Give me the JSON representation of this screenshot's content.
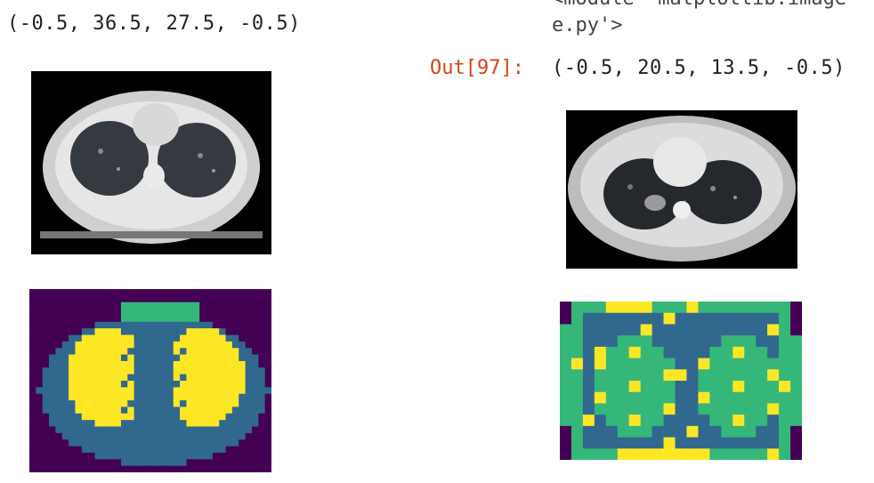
{
  "left_cell": {
    "output_tuple": "(-0.5, 36.5, 27.5, -0.5)"
  },
  "right_cell": {
    "cutoff_line": "<module 'matplotlib.image'",
    "cutoff_line2": "e.py'>",
    "out_prompt": "Out[97]:",
    "output_tuple": "(-0.5, 20.5, 13.5, -0.5)"
  },
  "colors": {
    "prompt": "#d84315",
    "viridis_dark": "#440154",
    "viridis_blue": "#31688e",
    "viridis_green": "#35b779",
    "viridis_yellow": "#fde725"
  },
  "images": [
    {
      "name": "ct-scan-left",
      "kind": "ct-scan"
    },
    {
      "name": "segmentation-mask-left",
      "kind": "segmentation-mask",
      "grid": "37x28"
    },
    {
      "name": "ct-scan-right",
      "kind": "ct-scan"
    },
    {
      "name": "segmentation-mask-right",
      "kind": "segmentation-mask",
      "grid": "21x14"
    }
  ]
}
